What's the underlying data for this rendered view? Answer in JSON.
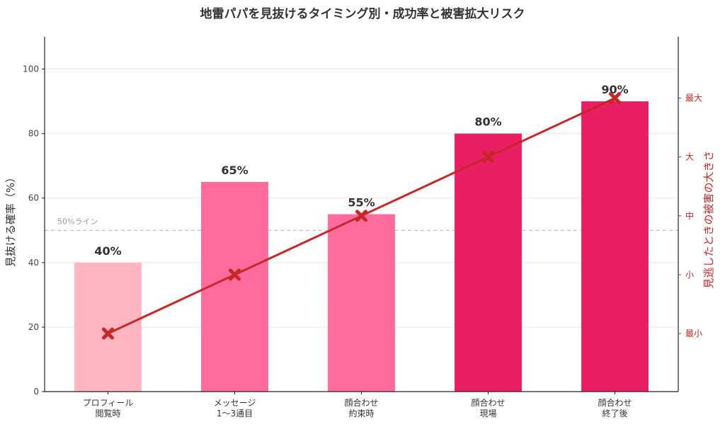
{
  "chart_data": {
    "type": "bar",
    "title": "地雷パパを見抜けるタイミング別・成功率と被害拡大リスク",
    "ylabel": "見抜ける確率（%）",
    "y2label": "見逃したときの被害の大きさ",
    "ylim": [
      0,
      110
    ],
    "yticks": [
      0,
      20,
      40,
      60,
      80,
      100
    ],
    "y2ticks": [
      "最小",
      "小",
      "中",
      "大",
      "最大"
    ],
    "grid": true,
    "categories": [
      [
        "プロフィール",
        "閲覧時"
      ],
      [
        "メッセージ",
        "1〜3通目"
      ],
      [
        "顔合わせ",
        "約束時"
      ],
      [
        "顔合わせ",
        "現場"
      ],
      [
        "顔合わせ",
        "終了後"
      ]
    ],
    "series": [
      {
        "values": [
          40,
          65,
          55,
          80,
          90
        ],
        "labels": [
          "40%",
          "65%",
          "55%",
          "80%",
          "90%"
        ],
        "colors": [
          "#ffb6c1",
          "#ff6b9d",
          "#ff6b9d",
          "#e91e63",
          "#e91e63"
        ]
      },
      {
        "type": "line",
        "axis": "right",
        "values": [
          1,
          2,
          3,
          4,
          5
        ],
        "color": "#c62828",
        "marker": "x"
      }
    ],
    "reference_line": {
      "value": 50,
      "label": "50%ライン"
    }
  }
}
